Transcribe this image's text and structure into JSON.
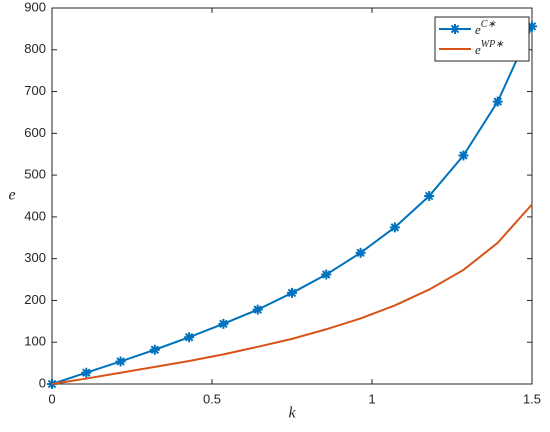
{
  "chart_data": {
    "type": "line",
    "x_label": "k",
    "y_label": "e",
    "x": [
      0,
      0.1071,
      0.2143,
      0.3214,
      0.4286,
      0.5357,
      0.6429,
      0.75,
      0.8571,
      0.9643,
      1.0714,
      1.1786,
      1.2857,
      1.3929,
      1.5
    ],
    "series": [
      {
        "name": "eC∗",
        "color": "#0072BD",
        "marker": "asterisk",
        "values": [
          0,
          27,
          54,
          82,
          112,
          144,
          178,
          218,
          262,
          314,
          375,
          450,
          547,
          676,
          856
        ]
      },
      {
        "name": "eWP∗",
        "color": "#D95319",
        "marker": "none",
        "values": [
          0,
          13,
          27,
          41,
          55,
          71,
          89,
          108,
          131,
          157,
          188,
          226,
          273,
          338,
          430
        ]
      }
    ],
    "xlim": [
      0,
      1.5
    ],
    "xticks": [
      0,
      0.5,
      1,
      1.5
    ],
    "ylim": [
      0,
      900
    ],
    "yticks": [
      0,
      100,
      200,
      300,
      400,
      500,
      600,
      700,
      800,
      900
    ],
    "grid": false,
    "legend": "top-right"
  }
}
